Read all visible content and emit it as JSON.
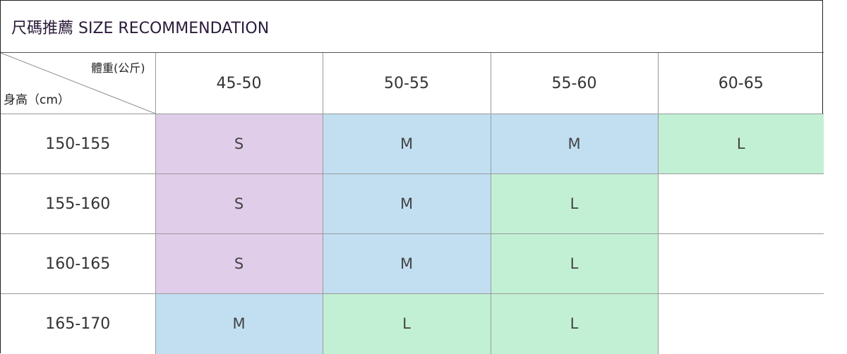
{
  "title": "尺碼推薦 SIZE RECOMMENDATION",
  "corner": {
    "weight_label": "體重(公斤)",
    "height_label": "身高（cm）"
  },
  "weight_ranges": [
    "45-50",
    "50-55",
    "55-60",
    "60-65"
  ],
  "rows": [
    {
      "height": "150-155",
      "sizes": [
        "S",
        "M",
        "M",
        "L"
      ]
    },
    {
      "height": "155-160",
      "sizes": [
        "S",
        "M",
        "L",
        ""
      ]
    },
    {
      "height": "160-165",
      "sizes": [
        "S",
        "M",
        "L",
        ""
      ]
    },
    {
      "height": "165-170",
      "sizes": [
        "M",
        "L",
        "L",
        ""
      ]
    }
  ],
  "colors": {
    "S": "#e0cdea",
    "M": "#c2dff2",
    "L": "#c2f0d4"
  }
}
